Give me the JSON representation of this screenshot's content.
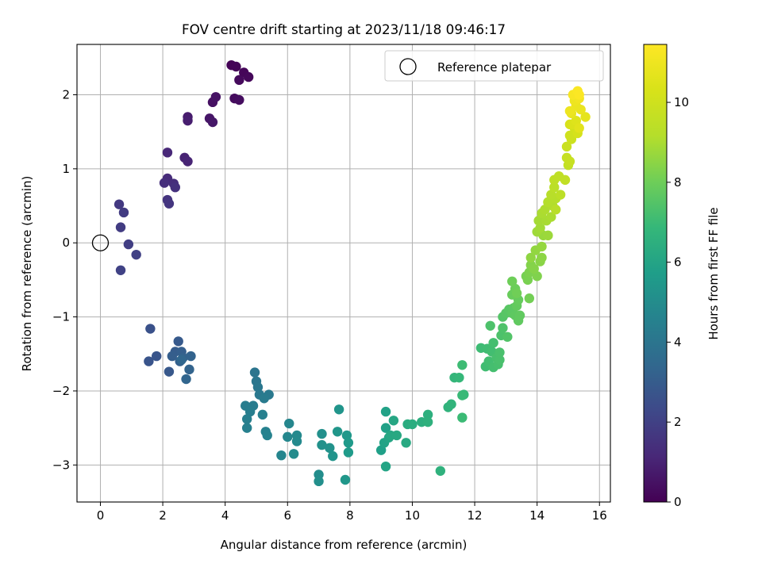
{
  "chart_data": {
    "type": "scatter",
    "title": "FOV centre drift starting at 2023/11/18 09:46:17",
    "xlabel": "Angular distance from reference (arcmin)",
    "ylabel": "Rotation from reference (arcmin)",
    "xlim": [
      -0.75,
      16.35
    ],
    "ylim": [
      -3.5,
      2.68
    ],
    "xticks": [
      "0",
      "2",
      "4",
      "6",
      "8",
      "10",
      "12",
      "14",
      "16"
    ],
    "yticks": [
      "−3",
      "−2",
      "−1",
      "0",
      "1",
      "2"
    ],
    "grid": true,
    "legend": {
      "position": "top-right",
      "entries": [
        "Reference platepar"
      ]
    },
    "reference_point": {
      "x": 0,
      "y": 0
    },
    "colorbar": {
      "label": "Hours from first FF file",
      "colormap": "viridis",
      "range": [
        0,
        11.45
      ],
      "ticks": [
        "0",
        "2",
        "4",
        "6",
        "8",
        "10"
      ]
    },
    "series": [
      {
        "points": [
          [
            4.2,
            2.4,
            0.05
          ],
          [
            4.35,
            2.38,
            0.1
          ],
          [
            4.6,
            2.3,
            0.15
          ],
          [
            4.75,
            2.24,
            0.2
          ],
          [
            4.45,
            2.2,
            0.25
          ],
          [
            4.3,
            1.95,
            0.3
          ],
          [
            4.45,
            1.93,
            0.35
          ],
          [
            3.6,
            1.9,
            0.45
          ],
          [
            3.7,
            1.97,
            0.5
          ],
          [
            3.5,
            1.68,
            0.6
          ],
          [
            3.6,
            1.63,
            0.65
          ],
          [
            2.8,
            1.7,
            0.8
          ],
          [
            2.8,
            1.65,
            0.85
          ],
          [
            2.7,
            1.15,
            1.0
          ],
          [
            2.8,
            1.1,
            1.05
          ],
          [
            2.15,
            1.22,
            1.15
          ],
          [
            2.15,
            0.87,
            1.3
          ],
          [
            2.35,
            0.8,
            1.35
          ],
          [
            2.05,
            0.81,
            1.4
          ],
          [
            2.4,
            0.75,
            1.45
          ],
          [
            2.15,
            0.58,
            1.55
          ],
          [
            2.2,
            0.53,
            1.6
          ],
          [
            0.6,
            0.52,
            1.75
          ],
          [
            0.75,
            0.41,
            1.8
          ],
          [
            0.65,
            0.21,
            1.85
          ],
          [
            0.9,
            -0.02,
            1.9
          ],
          [
            1.15,
            -0.16,
            2.0
          ],
          [
            0.65,
            -0.37,
            2.05
          ],
          [
            1.6,
            -1.16,
            2.6
          ],
          [
            1.55,
            -1.6,
            2.7
          ],
          [
            1.8,
            -1.53,
            2.75
          ],
          [
            2.2,
            -1.74,
            2.85
          ],
          [
            2.5,
            -1.33,
            2.9
          ],
          [
            2.4,
            -1.47,
            3.0
          ],
          [
            2.3,
            -1.53,
            3.05
          ],
          [
            2.6,
            -1.47,
            3.1
          ],
          [
            2.55,
            -1.6,
            3.15
          ],
          [
            2.65,
            -1.55,
            3.2
          ],
          [
            2.9,
            -1.53,
            3.25
          ],
          [
            2.85,
            -1.71,
            3.3
          ],
          [
            2.75,
            -1.84,
            3.35
          ],
          [
            2.6,
            -1.58,
            3.4
          ],
          [
            4.95,
            -1.75,
            4.0
          ],
          [
            5.0,
            -1.87,
            4.05
          ],
          [
            5.05,
            -1.95,
            4.1
          ],
          [
            5.1,
            -2.05,
            4.15
          ],
          [
            5.4,
            -2.05,
            4.2
          ],
          [
            5.25,
            -2.1,
            4.25
          ],
          [
            4.9,
            -2.2,
            4.3
          ],
          [
            4.65,
            -2.2,
            4.35
          ],
          [
            4.8,
            -2.28,
            4.4
          ],
          [
            4.7,
            -2.38,
            4.45
          ],
          [
            4.7,
            -2.5,
            4.5
          ],
          [
            5.2,
            -2.32,
            4.5
          ],
          [
            5.3,
            -2.55,
            4.55
          ],
          [
            5.35,
            -2.6,
            4.6
          ],
          [
            5.8,
            -2.87,
            4.7
          ],
          [
            6.05,
            -2.44,
            4.75
          ],
          [
            6.0,
            -2.62,
            4.8
          ],
          [
            6.3,
            -2.6,
            4.85
          ],
          [
            6.3,
            -2.68,
            4.9
          ],
          [
            6.2,
            -2.85,
            4.95
          ],
          [
            7.0,
            -3.13,
            5.05
          ],
          [
            7.0,
            -3.22,
            5.1
          ],
          [
            7.1,
            -2.58,
            5.15
          ],
          [
            7.1,
            -2.73,
            5.2
          ],
          [
            7.35,
            -2.77,
            5.25
          ],
          [
            7.45,
            -2.88,
            5.3
          ],
          [
            7.65,
            -2.25,
            5.35
          ],
          [
            7.6,
            -2.55,
            5.4
          ],
          [
            7.85,
            -3.2,
            5.45
          ],
          [
            7.9,
            -2.6,
            5.5
          ],
          [
            7.95,
            -2.7,
            5.55
          ],
          [
            7.95,
            -2.83,
            5.6
          ],
          [
            9.0,
            -2.8,
            5.8
          ],
          [
            9.15,
            -2.5,
            5.85
          ],
          [
            9.15,
            -2.28,
            5.9
          ],
          [
            9.1,
            -2.7,
            5.95
          ],
          [
            9.15,
            -3.02,
            6.0
          ],
          [
            9.25,
            -2.63,
            6.05
          ],
          [
            9.4,
            -2.4,
            6.1
          ],
          [
            9.3,
            -2.6,
            6.15
          ],
          [
            9.5,
            -2.6,
            6.2
          ],
          [
            9.8,
            -2.7,
            6.25
          ],
          [
            9.85,
            -2.45,
            6.35
          ],
          [
            10.0,
            -2.45,
            6.4
          ],
          [
            10.3,
            -2.42,
            6.45
          ],
          [
            10.5,
            -2.32,
            6.5
          ],
          [
            10.5,
            -2.42,
            6.55
          ],
          [
            10.9,
            -3.08,
            6.6
          ],
          [
            11.15,
            -2.22,
            6.65
          ],
          [
            11.25,
            -2.18,
            6.7
          ],
          [
            11.35,
            -1.82,
            6.8
          ],
          [
            11.5,
            -1.82,
            6.85
          ],
          [
            11.65,
            -2.05,
            6.9
          ],
          [
            11.6,
            -2.06,
            6.95
          ],
          [
            11.6,
            -2.36,
            7.0
          ],
          [
            11.6,
            -1.65,
            7.05
          ],
          [
            12.2,
            -1.42,
            7.05
          ],
          [
            12.35,
            -1.67,
            7.1
          ],
          [
            12.4,
            -1.43,
            7.1
          ],
          [
            12.45,
            -1.6,
            7.15
          ],
          [
            12.55,
            -1.47,
            7.15
          ],
          [
            12.6,
            -1.35,
            7.2
          ],
          [
            12.6,
            -1.68,
            7.2
          ],
          [
            12.7,
            -1.55,
            7.25
          ],
          [
            12.75,
            -1.64,
            7.25
          ],
          [
            12.8,
            -1.58,
            7.3
          ],
          [
            12.8,
            -1.48,
            7.3
          ],
          [
            12.5,
            -1.12,
            7.35
          ],
          [
            12.85,
            -1.25,
            7.35
          ],
          [
            12.9,
            -1.15,
            7.4
          ],
          [
            13.05,
            -1.27,
            7.45
          ],
          [
            12.9,
            -1.0,
            7.5
          ],
          [
            13.0,
            -0.95,
            7.55
          ],
          [
            13.1,
            -0.9,
            7.6
          ],
          [
            13.2,
            -0.95,
            7.65
          ],
          [
            13.25,
            -0.88,
            7.65
          ],
          [
            13.3,
            -0.98,
            7.7
          ],
          [
            13.4,
            -1.05,
            7.75
          ],
          [
            13.45,
            -0.98,
            7.75
          ],
          [
            13.35,
            -0.85,
            7.8
          ],
          [
            13.4,
            -0.77,
            7.85
          ],
          [
            13.2,
            -0.7,
            7.9
          ],
          [
            13.3,
            -0.62,
            7.95
          ],
          [
            13.2,
            -0.52,
            8.0
          ],
          [
            13.35,
            -0.68,
            8.05
          ],
          [
            13.75,
            -0.75,
            8.1
          ],
          [
            13.65,
            -0.45,
            8.15
          ],
          [
            13.7,
            -0.5,
            8.2
          ],
          [
            13.75,
            -0.4,
            8.25
          ],
          [
            14.0,
            -0.45,
            8.3
          ],
          [
            13.8,
            -0.3,
            8.35
          ],
          [
            13.9,
            -0.35,
            8.4
          ],
          [
            14.1,
            -0.25,
            8.45
          ],
          [
            14.15,
            -0.2,
            8.5
          ],
          [
            13.8,
            -0.2,
            8.55
          ],
          [
            13.95,
            -0.1,
            8.6
          ],
          [
            14.15,
            -0.05,
            8.65
          ],
          [
            14.2,
            0.1,
            8.7
          ],
          [
            14.35,
            0.1,
            8.75
          ],
          [
            14.0,
            0.15,
            8.8
          ],
          [
            14.1,
            0.2,
            8.85
          ],
          [
            14.05,
            0.3,
            8.9
          ],
          [
            14.3,
            0.3,
            8.95
          ],
          [
            14.15,
            0.4,
            9.0
          ],
          [
            14.45,
            0.35,
            9.0
          ],
          [
            14.25,
            0.45,
            9.05
          ],
          [
            14.5,
            0.5,
            9.1
          ],
          [
            14.35,
            0.55,
            9.15
          ],
          [
            14.6,
            0.6,
            9.2
          ],
          [
            14.45,
            0.65,
            9.25
          ],
          [
            14.6,
            0.45,
            9.3
          ],
          [
            14.55,
            0.75,
            9.35
          ],
          [
            14.75,
            0.65,
            9.4
          ],
          [
            14.55,
            0.85,
            9.45
          ],
          [
            14.7,
            0.9,
            9.5
          ],
          [
            14.9,
            0.85,
            9.55
          ],
          [
            15.0,
            1.05,
            9.6
          ],
          [
            14.95,
            1.15,
            9.7
          ],
          [
            15.05,
            1.1,
            9.75
          ],
          [
            14.95,
            1.3,
            9.8
          ],
          [
            15.1,
            1.4,
            9.9
          ],
          [
            15.05,
            1.45,
            10.0
          ],
          [
            15.2,
            1.55,
            10.1
          ],
          [
            15.3,
            1.48,
            10.2
          ],
          [
            15.05,
            1.6,
            10.3
          ],
          [
            15.15,
            1.6,
            10.4
          ],
          [
            15.25,
            1.65,
            10.5
          ],
          [
            15.35,
            1.55,
            10.6
          ],
          [
            15.55,
            1.7,
            10.7
          ],
          [
            15.1,
            1.75,
            10.8
          ],
          [
            15.4,
            1.8,
            10.85
          ],
          [
            15.25,
            1.85,
            10.9
          ],
          [
            15.05,
            1.78,
            10.95
          ],
          [
            15.2,
            1.92,
            11.0
          ],
          [
            15.35,
            1.95,
            11.1
          ],
          [
            15.3,
            2.0,
            11.2
          ],
          [
            15.15,
            2.0,
            11.25
          ],
          [
            15.3,
            2.05,
            11.35
          ],
          [
            15.35,
            2.0,
            11.4
          ]
        ]
      }
    ]
  }
}
